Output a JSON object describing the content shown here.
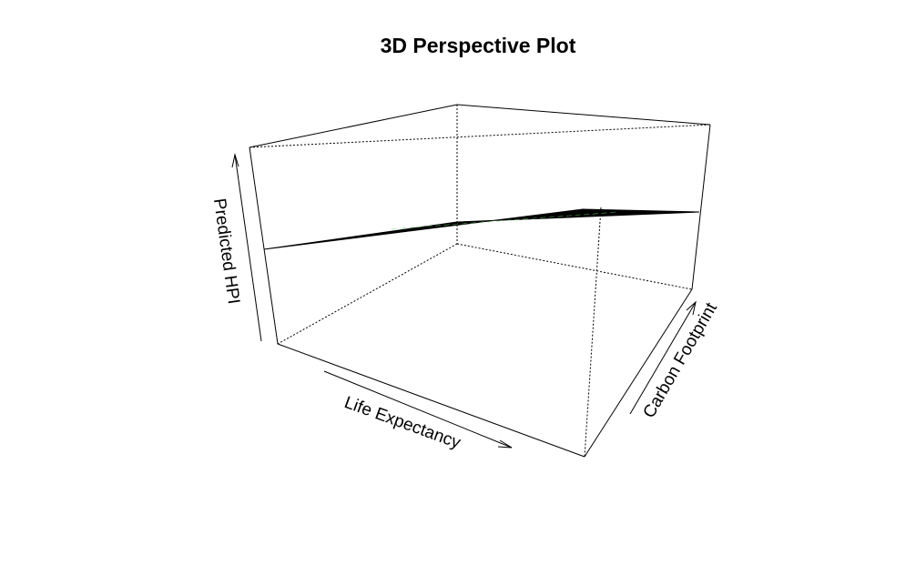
{
  "chart_data": {
    "type": "surface",
    "title": "3D Perspective Plot",
    "xlabel": "Life Expectancy",
    "ylabel": "Carbon Footprint",
    "zlabel": "Predicted HPI",
    "surface_color": "#000000",
    "mesh_highlight_color": "#66cc66",
    "background": "#ffffff"
  }
}
